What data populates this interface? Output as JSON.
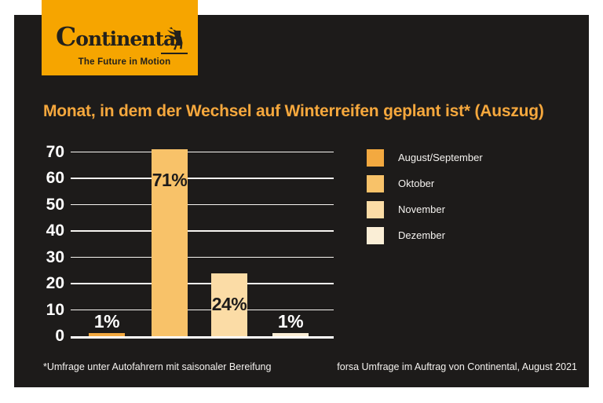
{
  "logo": {
    "wordmark_initial": "C",
    "wordmark_rest": "ontinental",
    "tagline": "The Future in Motion",
    "bg_color": "#f6a500",
    "text_color": "#23211c"
  },
  "chart_data": {
    "type": "bar",
    "title": "Monat, in dem der Wechsel auf Winterreifen geplant ist* (Auszug)",
    "categories": [
      "August/September",
      "Oktober",
      "November",
      "Dezember"
    ],
    "values": [
      1,
      71,
      24,
      1
    ],
    "value_labels": [
      "1%",
      "71%",
      "24%",
      "1%"
    ],
    "bar_colors": [
      "#f3a940",
      "#f8c269",
      "#fbdca6",
      "#faeed6"
    ],
    "xlabel": "",
    "ylabel": "",
    "ylim": [
      0,
      70
    ],
    "yticks": [
      0,
      10,
      20,
      30,
      40,
      50,
      60,
      70
    ],
    "grid": true,
    "legend_position": "right",
    "legend_entries": [
      "August/September",
      "Oktober",
      "November",
      "Dezember"
    ]
  },
  "footer": {
    "note_left": "*Umfrage unter Autofahrern mit saisonaler Bereifung",
    "note_right": "forsa Umfrage im Auftrag von Continental, August 2021"
  },
  "colors": {
    "panel_bg": "#1d1b1a",
    "page_bg": "#ffffff",
    "grid_color": "#f7f5f2",
    "axis_text_color": "#ffffff",
    "title_color": "#f6a83d",
    "value_label_inside": "#1d1b1a",
    "value_label_outside": "#ffffff"
  }
}
